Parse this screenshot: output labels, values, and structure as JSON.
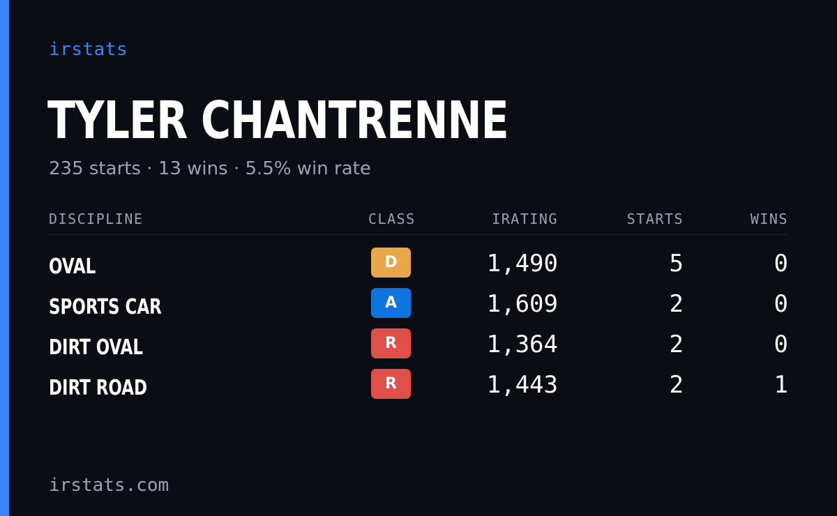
{
  "brand": "irstats",
  "driver": {
    "name": "TYLER CHANTRENNE",
    "starts_text": "235 starts",
    "wins_text": "13 wins",
    "win_rate_text": "5.5% win rate",
    "separator": "·"
  },
  "table": {
    "headers": {
      "discipline": "DISCIPLINE",
      "class": "CLASS",
      "irating": "IRATING",
      "starts": "STARTS",
      "wins": "WINS"
    },
    "rows": [
      {
        "discipline": "OVAL",
        "class": "D",
        "class_color": "#e8a84a",
        "irating": "1,490",
        "starts": "5",
        "wins": "0"
      },
      {
        "discipline": "SPORTS CAR",
        "class": "A",
        "class_color": "#0e74e0",
        "irating": "1,609",
        "starts": "2",
        "wins": "0"
      },
      {
        "discipline": "DIRT OVAL",
        "class": "R",
        "class_color": "#e0504a",
        "irating": "1,364",
        "starts": "2",
        "wins": "0"
      },
      {
        "discipline": "DIRT ROAD",
        "class": "R",
        "class_color": "#e0504a",
        "irating": "1,443",
        "starts": "2",
        "wins": "1"
      }
    ]
  },
  "footer": "irstats.com",
  "colors": {
    "accent": "#3b82f6",
    "background": "#0a0d14",
    "muted": "#9aa3b2"
  }
}
